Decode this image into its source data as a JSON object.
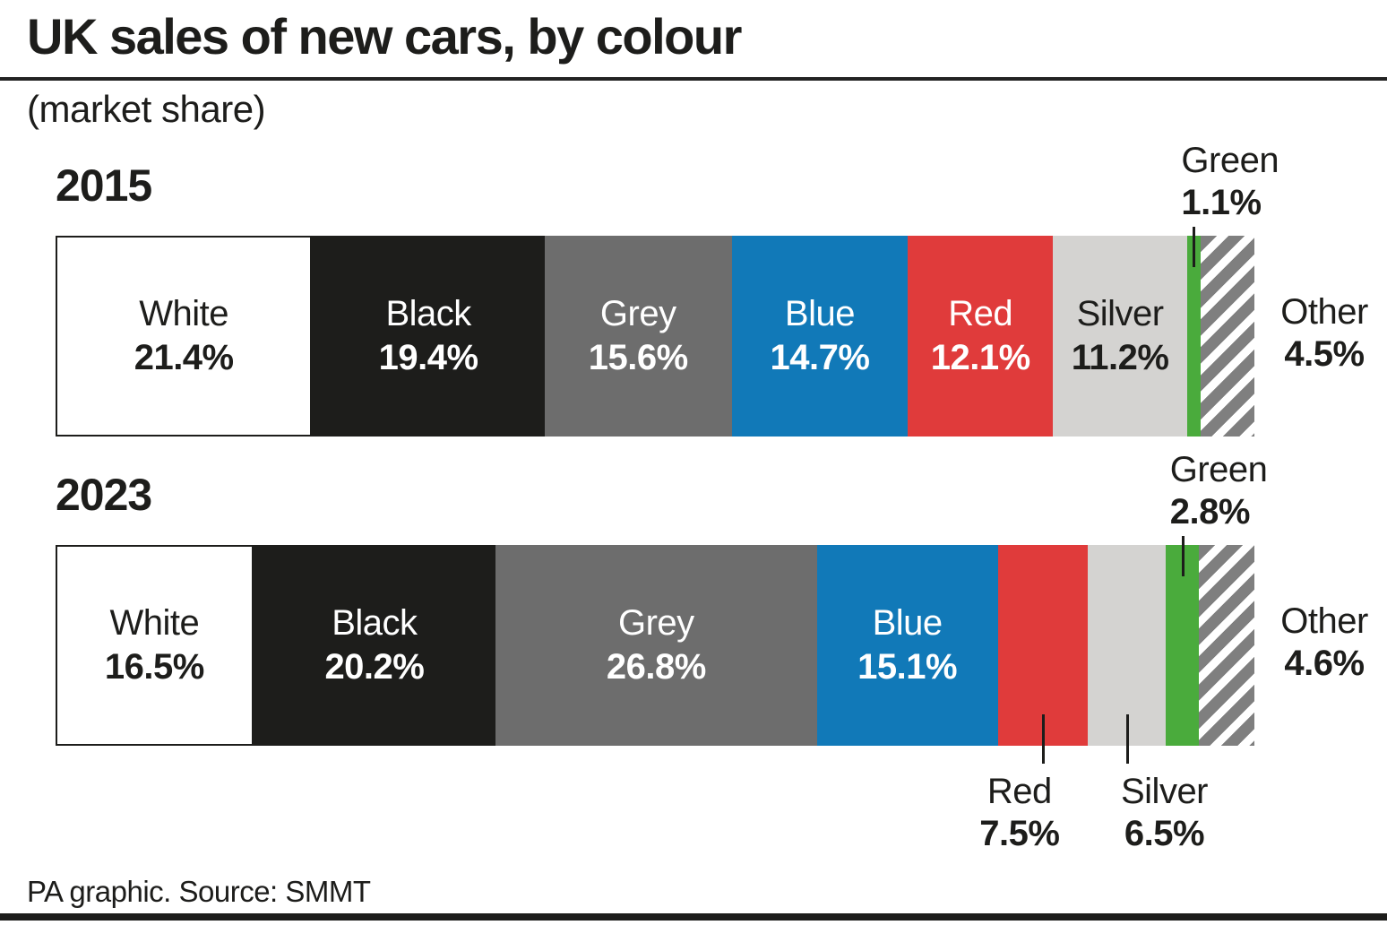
{
  "title": "UK sales of new cars, by colour",
  "subtitle": "(market share)",
  "footer": "PA graphic. Source: SMMT",
  "chart_data": {
    "type": "bar",
    "subtype": "horizontal-stacked-100-percent",
    "title": "UK sales of new cars, by colour",
    "subtitle": "(market share)",
    "unit": "%",
    "axis": "none",
    "grid": false,
    "legend_position": "none",
    "categories": [
      "White",
      "Black",
      "Grey",
      "Blue",
      "Red",
      "Silver",
      "Green",
      "Other"
    ],
    "series": [
      {
        "name": "2015",
        "values": [
          21.4,
          19.4,
          15.6,
          14.7,
          12.1,
          11.2,
          1.1,
          4.5
        ],
        "labels": [
          "21.4%",
          "19.4%",
          "15.6%",
          "14.7%",
          "12.1%",
          "11.2%",
          "1.1%",
          "4.5%"
        ],
        "label_positions": [
          "inside",
          "inside",
          "inside",
          "inside",
          "inside",
          "inside",
          "above",
          "right"
        ],
        "label_shifts": [
          0,
          0,
          0,
          0,
          0,
          0,
          0,
          0
        ]
      },
      {
        "name": "2023",
        "values": [
          16.5,
          20.2,
          26.8,
          15.1,
          7.5,
          6.5,
          2.8,
          4.6
        ],
        "labels": [
          "16.5%",
          "20.2%",
          "26.8%",
          "15.1%",
          "7.5%",
          "6.5%",
          "2.8%",
          "4.6%"
        ],
        "label_positions": [
          "inside",
          "inside",
          "inside",
          "inside",
          "below",
          "below",
          "above",
          "right"
        ],
        "label_shifts": [
          0,
          0,
          0,
          0,
          -26,
          42,
          0,
          0
        ]
      }
    ],
    "colors": {
      "White": "#ffffff",
      "Black": "#1d1d1b",
      "Grey": "#6d6d6d",
      "Blue": "#1179b8",
      "Red": "#e03b3b",
      "Silver": "#d4d3d1",
      "Green": "#4aab3c",
      "OtherStripeGrey": "#7f7f7f",
      "OtherStripeWhite": "#ffffff"
    },
    "dark_text_categories": [
      "White",
      "Silver",
      "Other"
    ],
    "text_colors": {
      "dark": "#1d1d1b",
      "light": "#ffffff"
    }
  }
}
